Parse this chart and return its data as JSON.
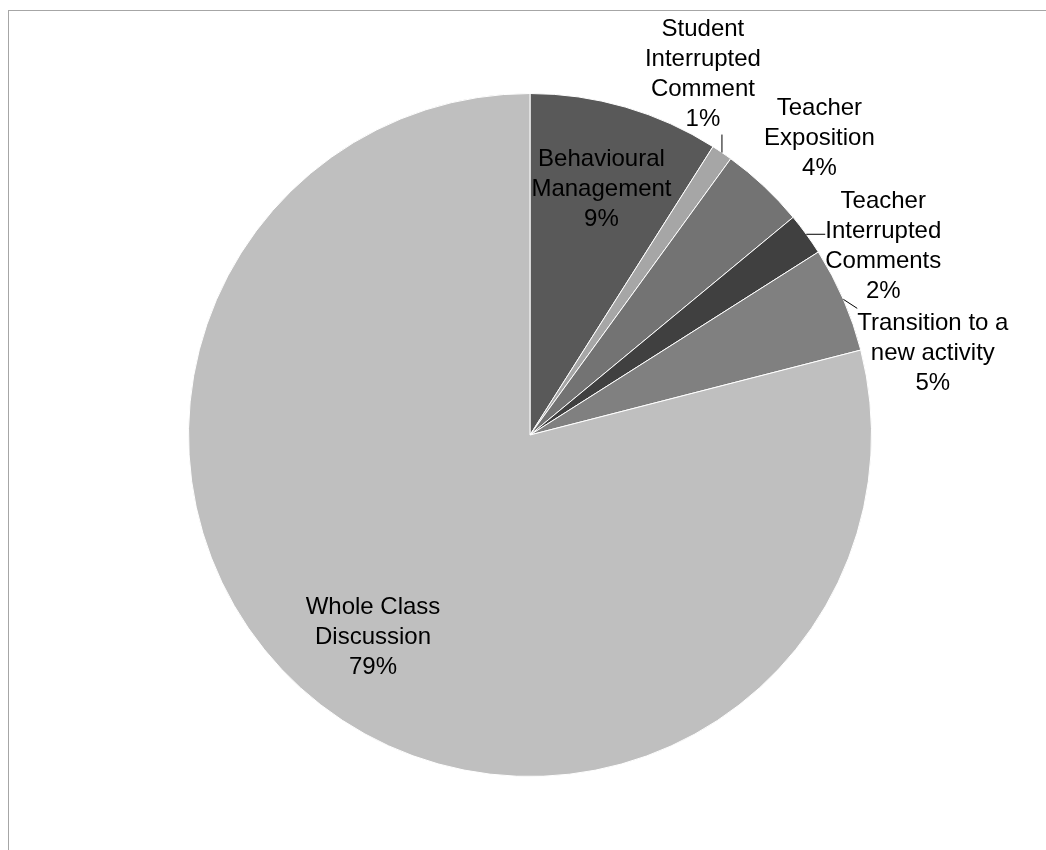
{
  "chart_data": {
    "type": "pie",
    "categories": [
      "Behavioural Management",
      "Student Interrupted Comment",
      "Teacher Exposition",
      "Teacher Interrupted Comments",
      "Transition to a new activity",
      "Whole Class Discussion"
    ],
    "values": [
      9,
      1,
      4,
      2,
      5,
      79
    ],
    "colors": [
      "#595959",
      "#a6a6a6",
      "#737373",
      "#404040",
      "#808080",
      "#bfbfbf"
    ],
    "value_labels": [
      "9%",
      "1%",
      "4%",
      "2%",
      "5%",
      "79%"
    ]
  }
}
